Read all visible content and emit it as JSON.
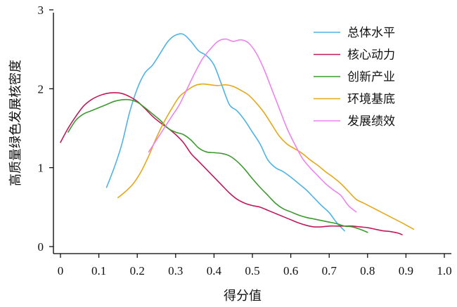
{
  "chart_data": {
    "type": "line",
    "title": "",
    "xlabel": "得分值",
    "ylabel": "高质量绿色发展核密度",
    "xlim": [
      0,
      1.0
    ],
    "ylim": [
      0,
      3
    ],
    "x_ticks": [
      "0",
      "0.1",
      "0.2",
      "0.3",
      "0.4",
      "0.5",
      "0.6",
      "0.7",
      "0.8",
      "0.9",
      "1.0"
    ],
    "y_ticks": [
      "0",
      "1",
      "2",
      "3"
    ],
    "grid": false,
    "legend_position": "top-right",
    "series": [
      {
        "name": "总体水平",
        "color": "#4db3e6",
        "points": [
          [
            0.12,
            0.75
          ],
          [
            0.14,
            1.0
          ],
          [
            0.16,
            1.3
          ],
          [
            0.18,
            1.7
          ],
          [
            0.2,
            2.0
          ],
          [
            0.22,
            2.2
          ],
          [
            0.24,
            2.3
          ],
          [
            0.26,
            2.45
          ],
          [
            0.28,
            2.6
          ],
          [
            0.3,
            2.68
          ],
          [
            0.32,
            2.69
          ],
          [
            0.34,
            2.6
          ],
          [
            0.36,
            2.48
          ],
          [
            0.38,
            2.42
          ],
          [
            0.4,
            2.3
          ],
          [
            0.42,
            2.05
          ],
          [
            0.44,
            1.8
          ],
          [
            0.46,
            1.72
          ],
          [
            0.48,
            1.6
          ],
          [
            0.5,
            1.45
          ],
          [
            0.52,
            1.3
          ],
          [
            0.54,
            1.1
          ],
          [
            0.56,
            1.0
          ],
          [
            0.58,
            0.95
          ],
          [
            0.6,
            0.88
          ],
          [
            0.62,
            0.8
          ],
          [
            0.64,
            0.72
          ],
          [
            0.66,
            0.62
          ],
          [
            0.68,
            0.52
          ],
          [
            0.7,
            0.43
          ],
          [
            0.72,
            0.3
          ],
          [
            0.74,
            0.2
          ]
        ]
      },
      {
        "name": "核心动力",
        "color": "#c2185b",
        "points": [
          [
            0.0,
            1.32
          ],
          [
            0.02,
            1.5
          ],
          [
            0.04,
            1.65
          ],
          [
            0.06,
            1.78
          ],
          [
            0.08,
            1.86
          ],
          [
            0.1,
            1.91
          ],
          [
            0.12,
            1.94
          ],
          [
            0.14,
            1.95
          ],
          [
            0.16,
            1.94
          ],
          [
            0.18,
            1.9
          ],
          [
            0.2,
            1.84
          ],
          [
            0.22,
            1.75
          ],
          [
            0.24,
            1.65
          ],
          [
            0.26,
            1.57
          ],
          [
            0.28,
            1.5
          ],
          [
            0.3,
            1.42
          ],
          [
            0.32,
            1.32
          ],
          [
            0.34,
            1.18
          ],
          [
            0.36,
            1.08
          ],
          [
            0.38,
            0.98
          ],
          [
            0.4,
            0.88
          ],
          [
            0.42,
            0.78
          ],
          [
            0.44,
            0.68
          ],
          [
            0.46,
            0.6
          ],
          [
            0.48,
            0.55
          ],
          [
            0.5,
            0.52
          ],
          [
            0.52,
            0.5
          ],
          [
            0.54,
            0.46
          ],
          [
            0.56,
            0.42
          ],
          [
            0.58,
            0.38
          ],
          [
            0.6,
            0.34
          ],
          [
            0.62,
            0.3
          ],
          [
            0.64,
            0.27
          ],
          [
            0.66,
            0.25
          ],
          [
            0.68,
            0.25
          ],
          [
            0.7,
            0.26
          ],
          [
            0.72,
            0.26
          ],
          [
            0.74,
            0.26
          ],
          [
            0.76,
            0.26
          ],
          [
            0.78,
            0.25
          ],
          [
            0.8,
            0.24
          ],
          [
            0.82,
            0.22
          ],
          [
            0.84,
            0.2
          ],
          [
            0.86,
            0.19
          ],
          [
            0.88,
            0.17
          ],
          [
            0.89,
            0.15
          ]
        ]
      },
      {
        "name": "创新产业",
        "color": "#3c9a2e",
        "points": [
          [
            0.02,
            1.45
          ],
          [
            0.04,
            1.6
          ],
          [
            0.06,
            1.68
          ],
          [
            0.08,
            1.72
          ],
          [
            0.1,
            1.76
          ],
          [
            0.12,
            1.8
          ],
          [
            0.14,
            1.84
          ],
          [
            0.16,
            1.86
          ],
          [
            0.18,
            1.86
          ],
          [
            0.2,
            1.83
          ],
          [
            0.22,
            1.76
          ],
          [
            0.24,
            1.68
          ],
          [
            0.26,
            1.6
          ],
          [
            0.28,
            1.5
          ],
          [
            0.3,
            1.45
          ],
          [
            0.32,
            1.42
          ],
          [
            0.34,
            1.35
          ],
          [
            0.36,
            1.25
          ],
          [
            0.38,
            1.2
          ],
          [
            0.4,
            1.19
          ],
          [
            0.42,
            1.18
          ],
          [
            0.44,
            1.15
          ],
          [
            0.46,
            1.08
          ],
          [
            0.48,
            0.98
          ],
          [
            0.5,
            0.86
          ],
          [
            0.52,
            0.75
          ],
          [
            0.54,
            0.65
          ],
          [
            0.56,
            0.55
          ],
          [
            0.58,
            0.48
          ],
          [
            0.6,
            0.44
          ],
          [
            0.62,
            0.4
          ],
          [
            0.64,
            0.37
          ],
          [
            0.66,
            0.35
          ],
          [
            0.68,
            0.33
          ],
          [
            0.7,
            0.31
          ],
          [
            0.72,
            0.29
          ],
          [
            0.74,
            0.26
          ],
          [
            0.76,
            0.25
          ],
          [
            0.78,
            0.22
          ],
          [
            0.8,
            0.18
          ]
        ]
      },
      {
        "name": "环境基底",
        "color": "#e6a817",
        "points": [
          [
            0.15,
            0.62
          ],
          [
            0.17,
            0.7
          ],
          [
            0.19,
            0.8
          ],
          [
            0.21,
            0.95
          ],
          [
            0.23,
            1.15
          ],
          [
            0.25,
            1.38
          ],
          [
            0.27,
            1.58
          ],
          [
            0.29,
            1.75
          ],
          [
            0.31,
            1.9
          ],
          [
            0.33,
            1.98
          ],
          [
            0.35,
            2.04
          ],
          [
            0.37,
            2.06
          ],
          [
            0.39,
            2.05
          ],
          [
            0.41,
            2.04
          ],
          [
            0.43,
            2.05
          ],
          [
            0.45,
            2.03
          ],
          [
            0.47,
            1.98
          ],
          [
            0.49,
            1.92
          ],
          [
            0.51,
            1.82
          ],
          [
            0.53,
            1.7
          ],
          [
            0.55,
            1.55
          ],
          [
            0.57,
            1.4
          ],
          [
            0.59,
            1.3
          ],
          [
            0.61,
            1.24
          ],
          [
            0.63,
            1.18
          ],
          [
            0.65,
            1.1
          ],
          [
            0.67,
            1.03
          ],
          [
            0.69,
            0.95
          ],
          [
            0.71,
            0.88
          ],
          [
            0.73,
            0.8
          ],
          [
            0.75,
            0.7
          ],
          [
            0.77,
            0.6
          ],
          [
            0.79,
            0.55
          ],
          [
            0.81,
            0.5
          ],
          [
            0.83,
            0.45
          ],
          [
            0.85,
            0.4
          ],
          [
            0.87,
            0.35
          ],
          [
            0.89,
            0.3
          ],
          [
            0.92,
            0.22
          ]
        ]
      },
      {
        "name": "发展绩效",
        "color": "#ee82ee",
        "points": [
          [
            0.23,
            1.2
          ],
          [
            0.25,
            1.35
          ],
          [
            0.27,
            1.5
          ],
          [
            0.29,
            1.65
          ],
          [
            0.31,
            1.8
          ],
          [
            0.33,
            2.0
          ],
          [
            0.35,
            2.2
          ],
          [
            0.37,
            2.38
          ],
          [
            0.39,
            2.5
          ],
          [
            0.41,
            2.6
          ],
          [
            0.43,
            2.63
          ],
          [
            0.45,
            2.6
          ],
          [
            0.47,
            2.62
          ],
          [
            0.49,
            2.58
          ],
          [
            0.51,
            2.45
          ],
          [
            0.53,
            2.25
          ],
          [
            0.55,
            2.0
          ],
          [
            0.57,
            1.75
          ],
          [
            0.59,
            1.5
          ],
          [
            0.61,
            1.3
          ],
          [
            0.63,
            1.12
          ],
          [
            0.65,
            1.0
          ],
          [
            0.67,
            0.9
          ],
          [
            0.69,
            0.8
          ],
          [
            0.71,
            0.72
          ],
          [
            0.73,
            0.65
          ],
          [
            0.75,
            0.52
          ],
          [
            0.77,
            0.44
          ]
        ]
      }
    ]
  }
}
